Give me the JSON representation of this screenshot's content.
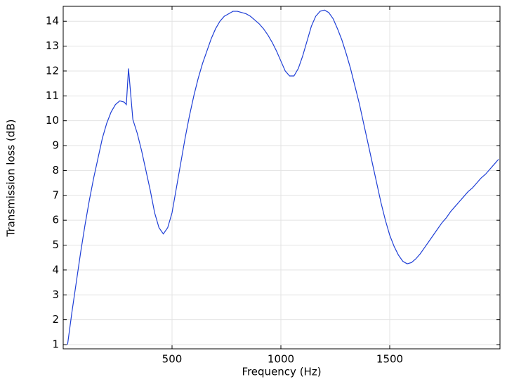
{
  "chart_data": {
    "type": "line",
    "x_label": "Frequency (Hz)",
    "y_label": "Transmission loss (dB)",
    "xlim": [
      0,
      2000
    ],
    "ylim": [
      0.83,
      14.6
    ],
    "xticks": [
      500,
      1000,
      1500
    ],
    "yticks": [
      1,
      2,
      3,
      4,
      5,
      6,
      7,
      8,
      9,
      10,
      11,
      12,
      13,
      14
    ],
    "grid": true,
    "x": [
      20,
      40,
      60,
      80,
      100,
      120,
      140,
      160,
      180,
      200,
      220,
      240,
      260,
      280,
      290,
      300,
      320,
      340,
      360,
      380,
      400,
      420,
      440,
      460,
      480,
      500,
      520,
      540,
      560,
      580,
      600,
      620,
      640,
      660,
      680,
      700,
      720,
      740,
      760,
      780,
      800,
      820,
      840,
      860,
      880,
      900,
      920,
      940,
      960,
      980,
      1000,
      1020,
      1040,
      1060,
      1080,
      1100,
      1120,
      1140,
      1160,
      1180,
      1200,
      1220,
      1240,
      1260,
      1280,
      1300,
      1320,
      1340,
      1360,
      1380,
      1400,
      1420,
      1440,
      1460,
      1480,
      1500,
      1520,
      1540,
      1560,
      1580,
      1600,
      1620,
      1640,
      1660,
      1680,
      1700,
      1720,
      1740,
      1760,
      1780,
      1800,
      1820,
      1840,
      1860,
      1880,
      1900,
      1920,
      1940,
      1960,
      1980,
      2000
    ],
    "series": [
      {
        "color": "#1f3fd6",
        "values": [
          1.0,
          2.3,
          3.5,
          4.7,
          5.8,
          6.8,
          7.7,
          8.5,
          9.3,
          9.9,
          10.35,
          10.65,
          10.8,
          10.75,
          10.65,
          12.1,
          10.05,
          9.5,
          8.8,
          8.0,
          7.2,
          6.3,
          5.7,
          5.45,
          5.7,
          6.3,
          7.3,
          8.3,
          9.3,
          10.2,
          11.0,
          11.7,
          12.3,
          12.8,
          13.3,
          13.7,
          14.0,
          14.2,
          14.3,
          14.4,
          14.4,
          14.35,
          14.3,
          14.2,
          14.05,
          13.9,
          13.7,
          13.45,
          13.15,
          12.8,
          12.4,
          12.0,
          11.8,
          11.8,
          12.1,
          12.6,
          13.2,
          13.8,
          14.2,
          14.4,
          14.45,
          14.35,
          14.1,
          13.7,
          13.25,
          12.7,
          12.1,
          11.4,
          10.7,
          9.9,
          9.1,
          8.3,
          7.5,
          6.7,
          6.0,
          5.4,
          4.95,
          4.6,
          4.35,
          4.25,
          4.3,
          4.45,
          4.65,
          4.9,
          5.15,
          5.4,
          5.65,
          5.9,
          6.1,
          6.35,
          6.55,
          6.75,
          6.95,
          7.15,
          7.3,
          7.5,
          7.7,
          7.85,
          8.05,
          8.25,
          8.45
        ]
      }
    ]
  }
}
